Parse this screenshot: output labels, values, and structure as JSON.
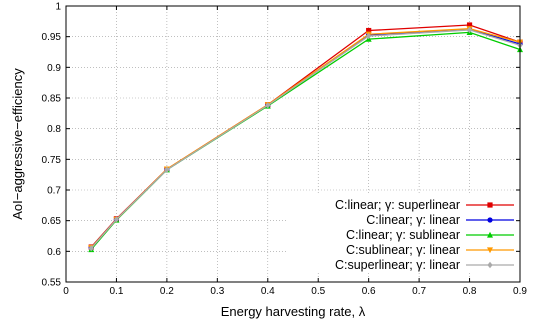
{
  "chart_data": {
    "type": "line",
    "xlabel": "Energy harvesting rate, λ",
    "ylabel": "AoI−aggressive−efficiency",
    "xlim": [
      0,
      0.9
    ],
    "ylim": [
      0.55,
      1
    ],
    "xticks": [
      0,
      0.1,
      0.2,
      0.3,
      0.4,
      0.5,
      0.6,
      0.7,
      0.8,
      0.9
    ],
    "xtick_labels": [
      "0",
      "0.1",
      "0.2",
      "0.3",
      "0.4",
      "0.5",
      "0.6",
      "0.7",
      "0.8",
      "0.9"
    ],
    "yticks": [
      0.55,
      0.6,
      0.65,
      0.7,
      0.75,
      0.8,
      0.85,
      0.9,
      0.95,
      1
    ],
    "ytick_labels": [
      "0.55",
      "0.6",
      "0.65",
      "0.7",
      "0.75",
      "0.8",
      "0.85",
      "0.9",
      "0.95",
      "1"
    ],
    "grid": true,
    "legend_position": "bottom-right",
    "x": [
      0.05,
      0.1,
      0.2,
      0.4,
      0.6,
      0.8,
      0.9
    ],
    "series": [
      {
        "name": "C:linear; γ: superlinear",
        "color": "#e00000",
        "marker": "square",
        "values": [
          0.607,
          0.653,
          0.734,
          0.839,
          0.96,
          0.969,
          0.941
        ]
      },
      {
        "name": "C:linear; γ: linear",
        "color": "#0000e0",
        "marker": "circle",
        "values": [
          0.606,
          0.652,
          0.733,
          0.838,
          0.953,
          0.962,
          0.938
        ]
      },
      {
        "name": "C:linear; γ: sublinear",
        "color": "#00cc00",
        "marker": "triangle",
        "values": [
          0.603,
          0.651,
          0.733,
          0.837,
          0.946,
          0.957,
          0.929
        ]
      },
      {
        "name": "C:sublinear; γ: linear",
        "color": "#ff9900",
        "marker": "triangle-down",
        "values": [
          0.606,
          0.652,
          0.734,
          0.839,
          0.954,
          0.963,
          0.941
        ]
      },
      {
        "name": "C:superlinear; γ: linear",
        "color": "#aaaaaa",
        "marker": "diamond",
        "values": [
          0.605,
          0.652,
          0.733,
          0.838,
          0.951,
          0.961,
          0.936
        ]
      }
    ]
  }
}
